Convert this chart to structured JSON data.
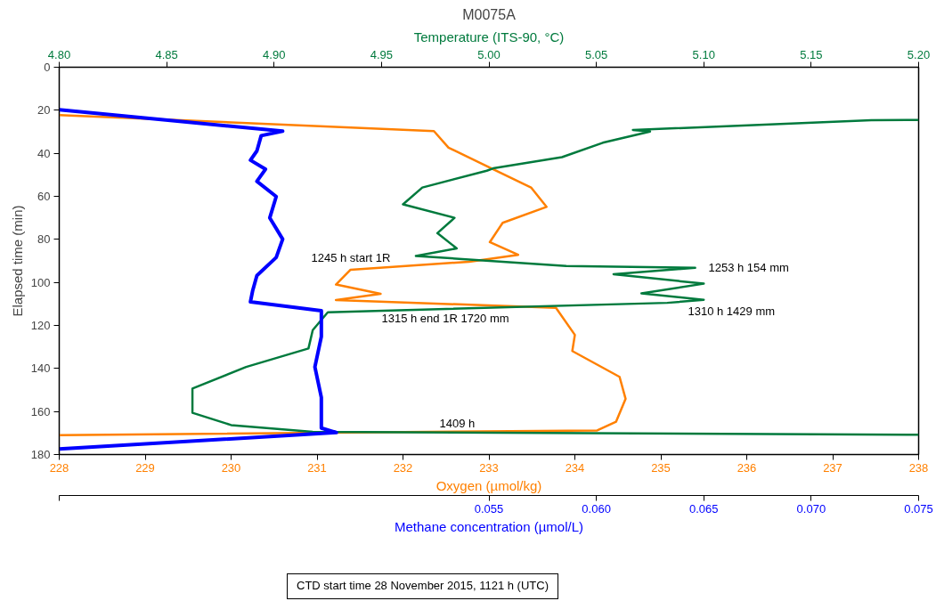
{
  "chart_data": [
    {
      "type": "line",
      "title": "M0075A",
      "xlabel": "Oxygen (µmol/kg)",
      "x2label": "Temperature (ITS-90, °C)",
      "ylabel": "Elapsed time (min)",
      "xlim": [
        228,
        238
      ],
      "xticks": [
        228,
        229,
        230,
        231,
        232,
        233,
        234,
        235,
        236,
        237,
        238
      ],
      "x2lim": [
        4.8,
        5.2
      ],
      "x2ticks": [
        {
          "value": 4.8,
          "label": "4.80"
        },
        {
          "value": 4.85,
          "label": "4.85"
        },
        {
          "value": 4.9,
          "label": "4.90"
        },
        {
          "value": 4.95,
          "label": "4.95"
        },
        {
          "value": 5.0,
          "label": "5.00"
        },
        {
          "value": 5.05,
          "label": "5.05"
        },
        {
          "value": 5.1,
          "label": "5.10"
        },
        {
          "value": 5.15,
          "label": "5.15"
        },
        {
          "value": 5.2,
          "label": "5.20"
        }
      ],
      "ylim": [
        180,
        0
      ],
      "yticks": [
        0,
        20,
        40,
        60,
        80,
        100,
        120,
        140,
        160,
        180
      ],
      "grid": false,
      "marker": "none",
      "line_style": "solid",
      "series": [
        {
          "color": "#ff8000",
          "x": [
            228.0,
            232.36,
            232.53,
            233.05,
            233.49,
            233.67,
            233.16,
            233.01,
            233.34,
            232.77,
            231.39,
            231.22,
            231.74,
            231.22,
            233.78,
            234.0,
            233.97,
            234.52,
            234.59,
            234.48,
            234.26,
            228.0
          ],
          "values": [
            22.2,
            29.7,
            37.4,
            47.4,
            55.9,
            64.9,
            72.3,
            81.3,
            87.2,
            90.4,
            94.1,
            101,
            105.3,
            108.2,
            111.8,
            124.4,
            131.9,
            143.9,
            154.1,
            164.7,
            168.8,
            171
          ]
        },
        {
          "axis": "x2",
          "color": "#007a3d",
          "x": [
            5.2,
            5.178,
            5.067,
            5.075,
            5.053,
            5.034,
            5.002,
            4.999,
            4.969,
            4.96,
            4.984,
            4.976,
            4.985,
            4.966,
            5.036,
            5.096,
            5.058,
            5.1,
            5.071,
            5.1,
            5.083,
            4.925,
            4.918,
            4.916,
            4.887,
            4.862,
            4.862,
            4.88,
            4.918,
            5.2
          ],
          "values": [
            24.5,
            24.6,
            29.2,
            29.9,
            35.1,
            41.8,
            47,
            48.1,
            55.9,
            63.7,
            70,
            77.1,
            84.2,
            87.7,
            92.4,
            93.2,
            96.2,
            100.6,
            105.1,
            108.1,
            109.5,
            113.9,
            122.2,
            130.7,
            139.3,
            149.3,
            160.6,
            166.3,
            169.4,
            170.8
          ]
        }
      ],
      "annotations": [
        "1245 h start 1R",
        "1253 h 154 mm",
        "1310 h 1429 mm",
        "1315 h end 1R 1720 mm",
        "1409 h",
        "CTD start time 28 November 2015, 1121 h (UTC)"
      ]
    },
    {
      "type": "line",
      "xlabel": "Methane concentration (µmol/L)",
      "tick_labels": "x",
      "xlim": [
        0.035,
        0.075
      ],
      "xticks": [
        {
          "value": 0.035,
          "label": null
        },
        {
          "value": 0.055,
          "label": "0.055"
        },
        {
          "value": 0.06,
          "label": "0.060"
        },
        {
          "value": 0.065,
          "label": "0.065"
        },
        {
          "value": 0.07,
          "label": "0.070"
        },
        {
          "value": 0.075,
          "label": "0.075"
        }
      ],
      "ylim": [
        180,
        0
      ],
      "series": [
        {
          "color": "#0000ff",
          "x": [
            0.035,
            0.0454,
            0.0444,
            0.0442,
            0.0439,
            0.0446,
            0.0442,
            0.0451,
            0.0448,
            0.0454,
            0.0451,
            0.0442,
            0.044,
            0.0439,
            0.0472,
            0.0472,
            0.0469,
            0.0472,
            0.0472,
            0.0479,
            0.035
          ],
          "values": [
            19.8,
            29.7,
            31.8,
            38.9,
            43.2,
            47.4,
            53,
            60.1,
            70,
            79.9,
            88.4,
            96.8,
            104,
            109,
            113.2,
            125.2,
            139.3,
            153.5,
            167.7,
            169.8,
            177.4
          ]
        }
      ]
    }
  ]
}
